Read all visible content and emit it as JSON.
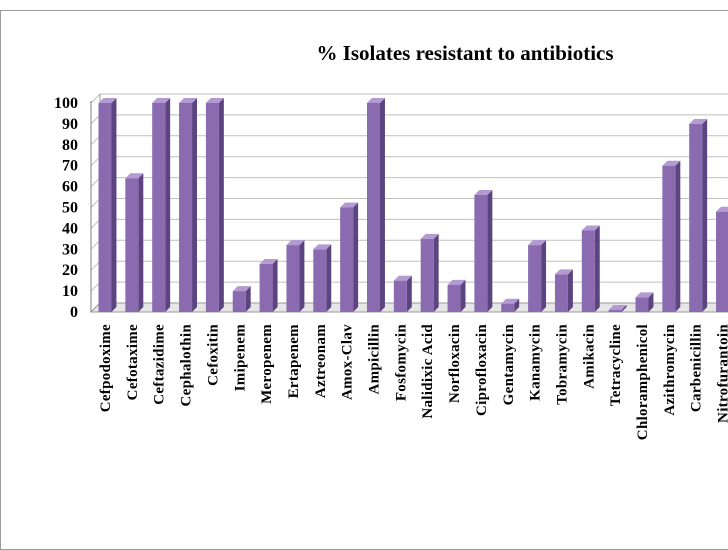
{
  "chart_data": {
    "type": "bar",
    "title": "% Isolates resistant to antibiotics",
    "xlabel": "",
    "ylabel": "",
    "ylim": [
      0,
      100
    ],
    "yticks": [
      0,
      10,
      20,
      30,
      40,
      50,
      60,
      70,
      80,
      90,
      100
    ],
    "grid": true,
    "legend": "none",
    "bar_color": "#8a6bb0",
    "categories": [
      "Cefpodoxime",
      "Cefotaxime",
      "Ceftazidime",
      "Cephalothin",
      "Cefoxitin",
      "Imipenem",
      "Meropenem",
      "Ertapenem",
      "Aztreonam",
      "Amox-Clav",
      "Ampicillin",
      "Fosfomycin",
      "Nalidixic Acid",
      "Norfloxacin",
      "Ciprofloxacin",
      "Gentamycin",
      "Kanamycin",
      "Tobramycin",
      "Amikacin",
      "Tetracycline",
      "Chloramphenicol",
      "Azithromycin",
      "Carbenicillin",
      "Nitrofurantoin"
    ],
    "tick_text": [
      "Cefpodoxime",
      "Cefotaxime",
      "Ceftazidime",
      "Cephalothin",
      "Cefoxitin",
      "Imipenem",
      "Meropenem",
      "Ertapenem",
      "Aztreonam",
      "Amox-Clav",
      "Ampicillin",
      "Fosfomycin",
      "Nalidixic Acid",
      "Norfloxacin",
      "Ciprofloxacin",
      "Gentamycin",
      "Kanamycin",
      "Tobramycin",
      "Amikacin",
      "Tetracycline",
      "Chloramphenicol",
      "Azithromycin",
      "Carbenicillin",
      "Nitrofurantoin"
    ],
    "values": [
      100,
      64,
      100,
      100,
      100,
      10,
      23,
      32,
      30,
      50,
      100,
      15,
      35,
      13,
      56,
      4,
      32,
      18,
      39,
      1,
      7,
      70,
      90,
      48
    ]
  }
}
